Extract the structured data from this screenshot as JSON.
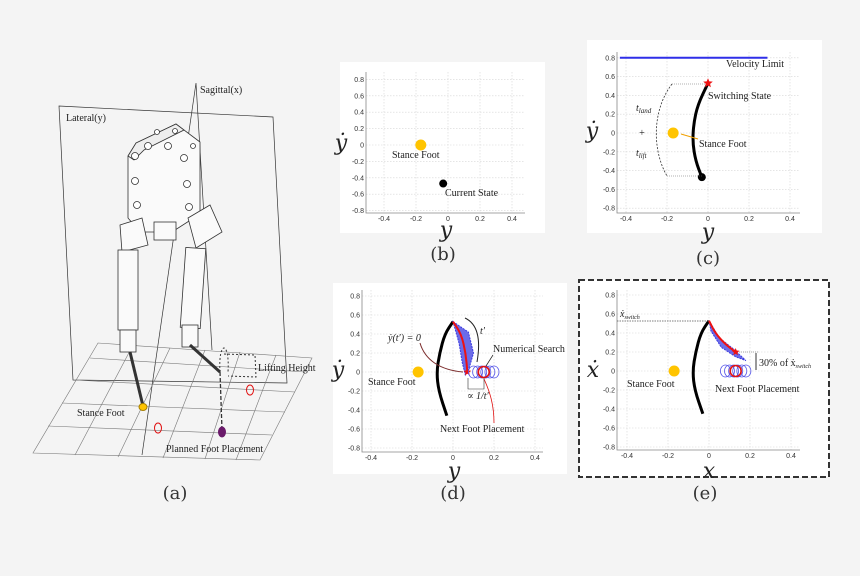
{
  "colors": {
    "stance_foot": "#ffc400",
    "trajectory": "#000000",
    "velocity_limit": "#2f2fe8",
    "switch_star": "#ee1111",
    "search_circles": "#5a5ae8",
    "band": "#3b3be0",
    "next_foot": "#e01010",
    "planned_foot": "#6a1a6a",
    "background": "#f4f4f4"
  },
  "panel_a": {
    "caption": "(a)",
    "sagittal_label": "Sagittal(x)",
    "lateral_label": "Lateral(y)",
    "lifting_height_label": "Lifting Height",
    "stance_foot_label": "Stance Foot",
    "planned_foot_label": "Planned Foot Placement"
  },
  "panel_b": {
    "caption": "(b)",
    "xlabel": "y",
    "ylabel": "ẏ",
    "xticks": [
      -0.4,
      -0.2,
      0,
      0.2,
      0.4
    ],
    "yticks": [
      0.8,
      0.6,
      0.4,
      0.2,
      0,
      -0.2,
      -0.4,
      -0.6,
      -0.8
    ],
    "stance_foot": {
      "x": -0.17,
      "y": 0,
      "label": "Stance Foot"
    },
    "current_state": {
      "x": -0.03,
      "y": -0.47,
      "label": "Current State"
    }
  },
  "panel_c": {
    "caption": "(c)",
    "xlabel": "y",
    "ylabel": "ẏ",
    "xticks": [
      -0.4,
      -0.2,
      0,
      0.2,
      0.4
    ],
    "yticks": [
      0.8,
      0.6,
      0.4,
      0.2,
      0,
      -0.2,
      -0.4,
      -0.6,
      -0.8
    ],
    "velocity_limit": {
      "y": 0.8,
      "x_from": -0.43,
      "x_to": 0.29,
      "label": "Velocity Limit"
    },
    "stance_foot": {
      "x": -0.17,
      "y": 0,
      "label": "Stance Foot"
    },
    "current_state": {
      "x": -0.03,
      "y": -0.47
    },
    "switching_state": {
      "x": 0,
      "y": 0.53,
      "label": "Switching State"
    },
    "trajectory": [
      [
        -0.03,
        -0.47
      ],
      [
        -0.06,
        -0.3
      ],
      [
        -0.075,
        -0.1
      ],
      [
        -0.07,
        0.1
      ],
      [
        -0.05,
        0.3
      ],
      [
        0,
        0.53
      ]
    ],
    "plus_marker": {
      "x": -0.32,
      "y": 0,
      "label": "+"
    },
    "t_land": {
      "t": "t",
      "sub": "land"
    },
    "t_lift": {
      "t": "t",
      "sub": "lift"
    }
  },
  "panel_d": {
    "caption": "(d)",
    "xlabel": "y",
    "ylabel": "ẏ",
    "xticks": [
      -0.4,
      -0.2,
      0,
      0.2,
      0.4
    ],
    "yticks": [
      0.8,
      0.6,
      0.4,
      0.2,
      0,
      -0.2,
      -0.4,
      -0.6,
      -0.8
    ],
    "stance_foot": {
      "x": -0.17,
      "y": 0,
      "label": "Stance Foot"
    },
    "trajectory": [
      [
        -0.03,
        -0.46
      ],
      [
        -0.07,
        -0.2
      ],
      [
        -0.08,
        0
      ],
      [
        -0.065,
        0.2
      ],
      [
        -0.04,
        0.4
      ],
      [
        0,
        0.53
      ]
    ],
    "predicted": [
      [
        0,
        0.53
      ],
      [
        0.04,
        0.4
      ],
      [
        0.062,
        0.2
      ],
      [
        0.07,
        0
      ]
    ],
    "band": [
      [
        0,
        0.53
      ],
      [
        0.075,
        0.42
      ],
      [
        0.1,
        0.2
      ],
      [
        0.08,
        0.05
      ],
      [
        0.06,
        -0.03
      ],
      [
        0.045,
        0.1
      ],
      [
        0.03,
        0.3
      ]
    ],
    "search_circles_x": [
      0.1,
      0.12,
      0.14,
      0.16,
      0.18,
      0.2
    ],
    "next_foot": {
      "x": 0.15,
      "y": 0,
      "label": "Next Foot Placement"
    },
    "numerical_search_label": "Numerical Search",
    "zero_vel_label": "ẏ(t′) = 0",
    "t_prime_label": "t′",
    "proportional_label": "∝",
    "proportional_frac": "1/t′"
  },
  "panel_e": {
    "caption": "(e)",
    "xlabel": "x",
    "ylabel": "ẋ",
    "xticks": [
      -0.4,
      -0.2,
      0,
      0.2,
      0.4
    ],
    "yticks": [
      0.8,
      0.6,
      0.4,
      0.2,
      0,
      -0.2,
      -0.4,
      -0.6,
      -0.8
    ],
    "stance_foot": {
      "x": -0.17,
      "y": 0,
      "label": "Stance Foot"
    },
    "trajectory": [
      [
        -0.03,
        -0.45
      ],
      [
        -0.07,
        -0.2
      ],
      [
        -0.08,
        0
      ],
      [
        -0.065,
        0.2
      ],
      [
        -0.04,
        0.4
      ],
      [
        0,
        0.53
      ]
    ],
    "predicted": [
      [
        0,
        0.53
      ],
      [
        0.03,
        0.4
      ],
      [
        0.08,
        0.28
      ],
      [
        0.13,
        0.2
      ]
    ],
    "band": [
      [
        0,
        0.53
      ],
      [
        0.05,
        0.35
      ],
      [
        0.12,
        0.23
      ],
      [
        0.18,
        0.11
      ],
      [
        0.13,
        0.15
      ],
      [
        0.06,
        0.25
      ],
      [
        0.01,
        0.42
      ]
    ],
    "search_circles_x": [
      0.08,
      0.1,
      0.12,
      0.14,
      0.16,
      0.18
    ],
    "next_foot": {
      "x": 0.13,
      "y": 0,
      "label": "Next Foot Placement"
    },
    "x_switch": {
      "y": 0.53,
      "t": "ẋ",
      "sub": "switch"
    },
    "percent_label": {
      "t": "30% of ẋ",
      "sub": "switch"
    }
  }
}
